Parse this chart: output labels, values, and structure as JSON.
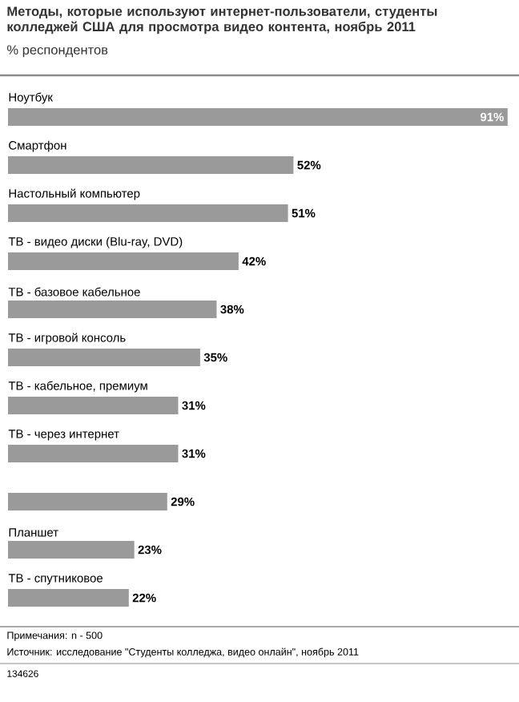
{
  "chart_data": {
    "type": "bar",
    "orientation": "horizontal",
    "title": "Методы, которые используют интернет-пользователи, студенты колледжей США для просмотра видео контента, ноябрь 2011",
    "subtitle": "% респондентов",
    "categories": [
      "Ноутбук",
      "Смартфон",
      "Настольный компьютер",
      "ТВ - видео диски (Blu-ray, DVD)",
      "ТВ - базовое кабельное",
      "ТВ - игровой консоль",
      "ТВ - кабельное, премиум",
      "ТВ - через интернет",
      null,
      "Планшет",
      "ТВ - спутниковое"
    ],
    "values": [
      91,
      52,
      51,
      42,
      38,
      35,
      31,
      31,
      29,
      23,
      22
    ],
    "value_labels": [
      "91%",
      "52%",
      "51%",
      "42%",
      "38%",
      "35%",
      "31%",
      "31%",
      "29%",
      "23%",
      "22%"
    ],
    "color": "#9a9a9a",
    "annotations": [
      "Примечания: n - 500",
      "Источник: исследование \"Студенты колледжа, видео онлайн\", ноябрь 2011",
      "134626"
    ]
  }
}
